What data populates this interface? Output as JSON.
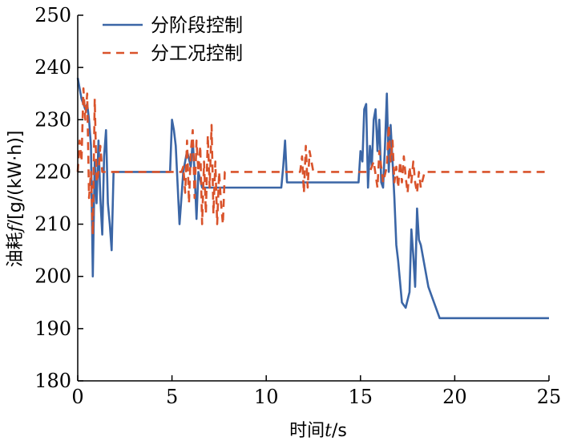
{
  "chart_data": {
    "type": "line",
    "xlabel_prefix": "时间",
    "xlabel_var": "t",
    "xlabel_suffix": "/s",
    "ylabel_prefix": "油耗",
    "ylabel_var": "f",
    "ylabel_suffix": "/[g/(kW·h)]",
    "xlim": [
      0,
      25
    ],
    "ylim": [
      180,
      250
    ],
    "xticks": [
      0,
      5,
      10,
      15,
      20,
      25
    ],
    "yticks": [
      180,
      190,
      200,
      210,
      220,
      230,
      240,
      250
    ],
    "grid": false,
    "legend_position": "top-left",
    "series": [
      {
        "name": "分阶段控制",
        "color": "#3b66a6",
        "dash": "solid",
        "x": [
          0,
          0.2,
          0.4,
          0.5,
          0.6,
          0.7,
          0.8,
          0.9,
          1.0,
          1.1,
          1.2,
          1.3,
          1.4,
          1.5,
          1.6,
          1.7,
          1.8,
          1.9,
          2.0,
          4.8,
          4.9,
          5.0,
          5.1,
          5.2,
          5.4,
          5.6,
          5.8,
          6.0,
          6.1,
          6.2,
          6.3,
          6.4,
          6.6,
          6.8,
          7.0,
          10.8,
          10.9,
          11.0,
          11.1,
          11.3,
          14.9,
          15.0,
          15.1,
          15.2,
          15.3,
          15.4,
          15.5,
          15.6,
          15.7,
          15.8,
          15.9,
          16.0,
          16.1,
          16.2,
          16.3,
          16.4,
          16.5,
          16.6,
          16.7,
          16.8,
          16.9,
          17.0,
          17.2,
          17.4,
          17.6,
          17.7,
          17.8,
          17.9,
          18.0,
          18.1,
          18.2,
          18.4,
          18.6,
          18.8,
          19.0,
          19.2,
          25.0
        ],
        "y": [
          238,
          234,
          232,
          233,
          230,
          225,
          200,
          222,
          214,
          226,
          215,
          208,
          223,
          228,
          214,
          210,
          205,
          220,
          220,
          220,
          220,
          230,
          228,
          225,
          210,
          220,
          224,
          221,
          226,
          220,
          211,
          220,
          217,
          217,
          217,
          217,
          221,
          226,
          218,
          218,
          218,
          224,
          222,
          232,
          233,
          217,
          225,
          221,
          230,
          232,
          224,
          230,
          218,
          217,
          225,
          235,
          220,
          229,
          222,
          215,
          206,
          203,
          195,
          194,
          197,
          209,
          204,
          198,
          213,
          207,
          206,
          202,
          198,
          196,
          194,
          192,
          192
        ]
      },
      {
        "name": "分工况控制",
        "color": "#d9532b",
        "dash": "dashed",
        "x": [
          0,
          0.1,
          0.2,
          0.3,
          0.4,
          0.5,
          0.6,
          0.7,
          0.8,
          0.9,
          1.0,
          1.1,
          1.2,
          1.3,
          1.4,
          1.5,
          2.0,
          5.5,
          5.6,
          5.7,
          5.8,
          5.9,
          6.0,
          6.1,
          6.2,
          6.3,
          6.4,
          6.5,
          6.6,
          6.7,
          6.8,
          6.9,
          7.0,
          7.1,
          7.2,
          7.3,
          7.4,
          7.5,
          7.6,
          7.7,
          7.8,
          8.0,
          11.8,
          11.9,
          12.0,
          12.1,
          12.2,
          12.3,
          12.4,
          12.5,
          15.5,
          15.7,
          15.9,
          16.0,
          16.2,
          16.4,
          16.5,
          16.6,
          16.7,
          16.8,
          16.9,
          17.0,
          17.1,
          17.2,
          17.3,
          17.4,
          17.5,
          17.6,
          17.7,
          17.8,
          17.9,
          18.0,
          18.1,
          18.2,
          18.4,
          25.0
        ],
        "y": [
          220,
          226,
          222,
          236,
          230,
          235,
          215,
          220,
          208,
          234,
          218,
          220,
          225,
          220,
          220,
          220,
          220,
          220,
          221,
          216,
          226,
          214,
          224,
          228,
          215,
          226,
          220,
          225,
          210,
          222,
          212,
          227,
          217,
          229,
          212,
          222,
          210,
          220,
          214,
          210,
          220,
          220,
          220,
          223,
          216,
          225,
          217,
          224,
          222,
          220,
          220,
          222,
          217,
          224,
          218,
          221,
          229,
          222,
          226,
          218,
          221,
          217,
          222,
          218,
          223,
          219,
          216,
          221,
          218,
          222,
          218,
          216,
          220,
          217,
          220,
          220
        ]
      }
    ]
  }
}
